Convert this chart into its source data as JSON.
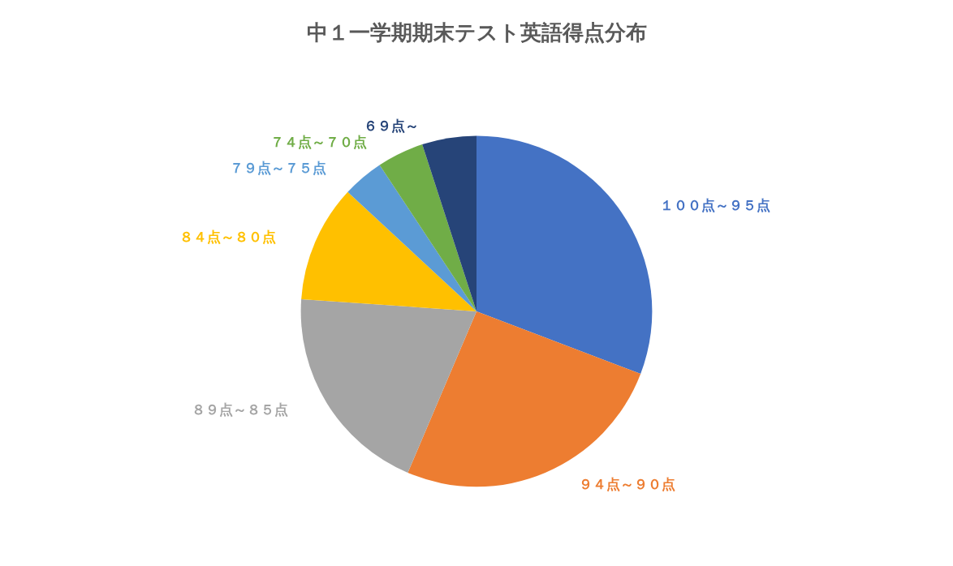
{
  "chart_data": {
    "type": "pie",
    "title": "中１一学期期末テスト英語得点分布",
    "categories": [
      "１００点～９５点",
      "９４点～９０点",
      "８９点～８５点",
      "８４点～８０点",
      "７９点～７５点",
      "７４点～７０点",
      "６９点～"
    ],
    "values": [
      30.8,
      25.6,
      19.7,
      10.8,
      3.8,
      4.3,
      5.0
    ],
    "colors": [
      "#4472c4",
      "#ed7d31",
      "#a5a5a5",
      "#ffc000",
      "#5b9bd5",
      "#70ad47",
      "#264478"
    ],
    "legend": false
  }
}
